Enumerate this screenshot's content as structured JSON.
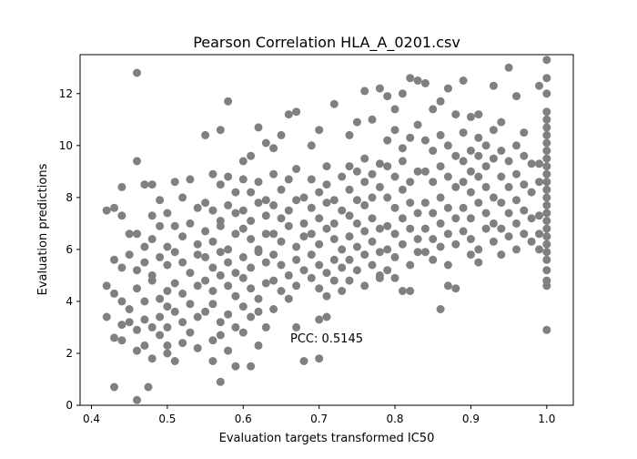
{
  "chart_data": {
    "type": "scatter",
    "title": "Pearson Correlation HLA_A_0201.csv",
    "xlabel": "Evaluation targets transformed IC50",
    "ylabel": "Evaluation predictions",
    "annotation": "PCC: 0.5145",
    "xlim": [
      0.385,
      1.035
    ],
    "ylim": [
      0,
      13.5
    ],
    "x_ticks": [
      0.4,
      0.5,
      0.6,
      0.7,
      0.8,
      0.9,
      1.0
    ],
    "x_tick_labels": [
      "0.4",
      "0.5",
      "0.6",
      "0.7",
      "0.8",
      "0.9",
      "1.0"
    ],
    "y_ticks": [
      0,
      2,
      4,
      6,
      8,
      10,
      12
    ],
    "y_tick_labels": [
      "0",
      "2",
      "4",
      "6",
      "8",
      "10",
      "12"
    ],
    "marker_color": "#808080",
    "grid": false,
    "legend": "none",
    "points": [
      [
        0.42,
        7.5
      ],
      [
        0.43,
        7.6
      ],
      [
        0.44,
        8.4
      ],
      [
        0.44,
        7.3
      ],
      [
        0.45,
        6.6
      ],
      [
        0.46,
        6.6
      ],
      [
        0.47,
        6.1
      ],
      [
        0.43,
        5.6
      ],
      [
        0.44,
        5.3
      ],
      [
        0.45,
        5.8
      ],
      [
        0.46,
        5.2
      ],
      [
        0.47,
        5.5
      ],
      [
        0.48,
        5.0
      ],
      [
        0.42,
        4.6
      ],
      [
        0.43,
        4.3
      ],
      [
        0.44,
        4.0
      ],
      [
        0.45,
        3.7
      ],
      [
        0.46,
        4.5
      ],
      [
        0.47,
        4.0
      ],
      [
        0.42,
        3.4
      ],
      [
        0.44,
        3.1
      ],
      [
        0.45,
        3.2
      ],
      [
        0.46,
        2.9
      ],
      [
        0.47,
        3.3
      ],
      [
        0.48,
        3.0
      ],
      [
        0.43,
        2.6
      ],
      [
        0.44,
        2.5
      ],
      [
        0.46,
        2.1
      ],
      [
        0.47,
        2.3
      ],
      [
        0.46,
        12.8
      ],
      [
        0.46,
        9.4
      ],
      [
        0.43,
        0.7
      ],
      [
        0.46,
        0.2
      ],
      [
        0.475,
        0.7
      ],
      [
        0.47,
        8.5
      ],
      [
        0.48,
        8.5
      ],
      [
        0.49,
        7.9
      ],
      [
        0.48,
        7.3
      ],
      [
        0.49,
        6.9
      ],
      [
        0.5,
        7.4
      ],
      [
        0.48,
        6.4
      ],
      [
        0.5,
        6.1
      ],
      [
        0.49,
        5.7
      ],
      [
        0.5,
        5.4
      ],
      [
        0.48,
        4.8
      ],
      [
        0.5,
        4.4
      ],
      [
        0.49,
        4.1
      ],
      [
        0.5,
        3.8
      ],
      [
        0.49,
        3.4
      ],
      [
        0.5,
        3.0
      ],
      [
        0.49,
        2.7
      ],
      [
        0.5,
        2.3
      ],
      [
        0.48,
        1.8
      ],
      [
        0.5,
        2.0
      ],
      [
        0.51,
        8.6
      ],
      [
        0.52,
        8.0
      ],
      [
        0.53,
        8.7
      ],
      [
        0.54,
        7.6
      ],
      [
        0.51,
        6.9
      ],
      [
        0.52,
        6.5
      ],
      [
        0.53,
        7.0
      ],
      [
        0.54,
        6.2
      ],
      [
        0.51,
        5.9
      ],
      [
        0.52,
        5.5
      ],
      [
        0.53,
        5.1
      ],
      [
        0.54,
        5.8
      ],
      [
        0.51,
        4.7
      ],
      [
        0.52,
        4.3
      ],
      [
        0.53,
        3.9
      ],
      [
        0.54,
        4.6
      ],
      [
        0.51,
        3.6
      ],
      [
        0.52,
        3.2
      ],
      [
        0.53,
        2.8
      ],
      [
        0.54,
        3.4
      ],
      [
        0.52,
        2.4
      ],
      [
        0.54,
        2.2
      ],
      [
        0.51,
        1.7
      ],
      [
        0.55,
        10.4
      ],
      [
        0.57,
        10.6
      ],
      [
        0.58,
        11.7
      ],
      [
        0.56,
        8.9
      ],
      [
        0.57,
        8.5
      ],
      [
        0.58,
        8.8
      ],
      [
        0.59,
        8.2
      ],
      [
        0.55,
        7.8
      ],
      [
        0.56,
        7.5
      ],
      [
        0.57,
        7.1
      ],
      [
        0.58,
        7.7
      ],
      [
        0.59,
        7.4
      ],
      [
        0.55,
        6.7
      ],
      [
        0.56,
        6.3
      ],
      [
        0.57,
        6.9
      ],
      [
        0.58,
        6.0
      ],
      [
        0.59,
        6.6
      ],
      [
        0.55,
        5.7
      ],
      [
        0.56,
        5.3
      ],
      [
        0.57,
        5.9
      ],
      [
        0.58,
        5.5
      ],
      [
        0.59,
        5.1
      ],
      [
        0.55,
        4.8
      ],
      [
        0.56,
        4.4
      ],
      [
        0.57,
        5.0
      ],
      [
        0.58,
        4.6
      ],
      [
        0.59,
        4.2
      ],
      [
        0.55,
        3.6
      ],
      [
        0.56,
        3.9
      ],
      [
        0.57,
        3.2
      ],
      [
        0.58,
        3.5
      ],
      [
        0.59,
        3.0
      ],
      [
        0.56,
        2.5
      ],
      [
        0.57,
        2.7
      ],
      [
        0.58,
        2.1
      ],
      [
        0.56,
        1.7
      ],
      [
        0.59,
        1.5
      ],
      [
        0.57,
        0.9
      ],
      [
        0.6,
        9.4
      ],
      [
        0.61,
        9.6
      ],
      [
        0.62,
        10.7
      ],
      [
        0.63,
        10.1
      ],
      [
        0.6,
        8.7
      ],
      [
        0.61,
        8.2
      ],
      [
        0.62,
        8.6
      ],
      [
        0.63,
        7.9
      ],
      [
        0.6,
        7.5
      ],
      [
        0.61,
        7.1
      ],
      [
        0.62,
        7.8
      ],
      [
        0.63,
        7.3
      ],
      [
        0.6,
        6.8
      ],
      [
        0.61,
        6.4
      ],
      [
        0.62,
        6.0
      ],
      [
        0.63,
        6.6
      ],
      [
        0.6,
        5.7
      ],
      [
        0.61,
        5.3
      ],
      [
        0.62,
        5.9
      ],
      [
        0.63,
        5.5
      ],
      [
        0.6,
        4.9
      ],
      [
        0.61,
        4.5
      ],
      [
        0.62,
        4.1
      ],
      [
        0.63,
        4.7
      ],
      [
        0.6,
        3.8
      ],
      [
        0.61,
        3.4
      ],
      [
        0.62,
        3.6
      ],
      [
        0.63,
        3.0
      ],
      [
        0.6,
        2.8
      ],
      [
        0.62,
        2.3
      ],
      [
        0.61,
        1.5
      ],
      [
        0.64,
        9.9
      ],
      [
        0.65,
        10.4
      ],
      [
        0.66,
        11.2
      ],
      [
        0.67,
        11.3
      ],
      [
        0.64,
        8.9
      ],
      [
        0.65,
        8.3
      ],
      [
        0.66,
        8.7
      ],
      [
        0.67,
        9.1
      ],
      [
        0.68,
        8.0
      ],
      [
        0.64,
        7.7
      ],
      [
        0.65,
        7.2
      ],
      [
        0.66,
        7.5
      ],
      [
        0.67,
        7.9
      ],
      [
        0.68,
        7.0
      ],
      [
        0.64,
        6.6
      ],
      [
        0.65,
        6.3
      ],
      [
        0.66,
        6.9
      ],
      [
        0.67,
        6.1
      ],
      [
        0.68,
        6.5
      ],
      [
        0.64,
        5.8
      ],
      [
        0.65,
        5.4
      ],
      [
        0.66,
        5.0
      ],
      [
        0.67,
        5.6
      ],
      [
        0.68,
        5.2
      ],
      [
        0.64,
        4.8
      ],
      [
        0.65,
        4.4
      ],
      [
        0.66,
        4.1
      ],
      [
        0.67,
        4.6
      ],
      [
        0.64,
        3.7
      ],
      [
        0.67,
        3.0
      ],
      [
        0.69,
        10.0
      ],
      [
        0.7,
        10.6
      ],
      [
        0.71,
        9.2
      ],
      [
        0.72,
        11.6
      ],
      [
        0.69,
        8.7
      ],
      [
        0.7,
        8.2
      ],
      [
        0.71,
        8.5
      ],
      [
        0.72,
        7.9
      ],
      [
        0.73,
        8.8
      ],
      [
        0.69,
        7.6
      ],
      [
        0.7,
        7.2
      ],
      [
        0.71,
        7.8
      ],
      [
        0.72,
        7.0
      ],
      [
        0.73,
        7.5
      ],
      [
        0.69,
        6.6
      ],
      [
        0.7,
        6.2
      ],
      [
        0.71,
        6.8
      ],
      [
        0.72,
        6.4
      ],
      [
        0.73,
        6.0
      ],
      [
        0.69,
        5.8
      ],
      [
        0.7,
        5.4
      ],
      [
        0.71,
        5.1
      ],
      [
        0.72,
        5.6
      ],
      [
        0.73,
        5.3
      ],
      [
        0.69,
        4.9
      ],
      [
        0.7,
        4.5
      ],
      [
        0.71,
        4.2
      ],
      [
        0.72,
        4.8
      ],
      [
        0.73,
        4.4
      ],
      [
        0.7,
        3.3
      ],
      [
        0.71,
        3.4
      ],
      [
        0.7,
        1.8
      ],
      [
        0.68,
        1.7
      ],
      [
        0.74,
        10.4
      ],
      [
        0.75,
        10.9
      ],
      [
        0.76,
        12.1
      ],
      [
        0.77,
        11.0
      ],
      [
        0.78,
        12.2
      ],
      [
        0.74,
        9.2
      ],
      [
        0.75,
        9.0
      ],
      [
        0.76,
        9.5
      ],
      [
        0.77,
        8.9
      ],
      [
        0.78,
        9.3
      ],
      [
        0.74,
        8.3
      ],
      [
        0.75,
        7.9
      ],
      [
        0.76,
        8.6
      ],
      [
        0.77,
        8.0
      ],
      [
        0.78,
        8.4
      ],
      [
        0.74,
        7.3
      ],
      [
        0.75,
        7.0
      ],
      [
        0.76,
        7.7
      ],
      [
        0.77,
        7.2
      ],
      [
        0.78,
        6.8
      ],
      [
        0.74,
        6.5
      ],
      [
        0.75,
        6.1
      ],
      [
        0.76,
        6.7
      ],
      [
        0.77,
        6.3
      ],
      [
        0.78,
        5.9
      ],
      [
        0.74,
        5.6
      ],
      [
        0.75,
        5.2
      ],
      [
        0.76,
        5.8
      ],
      [
        0.77,
        5.4
      ],
      [
        0.78,
        5.0
      ],
      [
        0.74,
        4.8
      ],
      [
        0.76,
        4.6
      ],
      [
        0.78,
        4.9
      ],
      [
        0.79,
        11.9
      ],
      [
        0.8,
        11.4
      ],
      [
        0.81,
        12.0
      ],
      [
        0.82,
        12.6
      ],
      [
        0.83,
        12.5
      ],
      [
        0.79,
        10.2
      ],
      [
        0.8,
        10.6
      ],
      [
        0.81,
        9.9
      ],
      [
        0.82,
        10.3
      ],
      [
        0.83,
        10.8
      ],
      [
        0.79,
        9.2
      ],
      [
        0.8,
        8.8
      ],
      [
        0.81,
        9.4
      ],
      [
        0.82,
        8.6
      ],
      [
        0.83,
        9.0
      ],
      [
        0.79,
        8.0
      ],
      [
        0.8,
        7.6
      ],
      [
        0.81,
        8.3
      ],
      [
        0.82,
        7.8
      ],
      [
        0.83,
        7.4
      ],
      [
        0.79,
        6.9
      ],
      [
        0.8,
        6.6
      ],
      [
        0.81,
        7.2
      ],
      [
        0.82,
        6.8
      ],
      [
        0.83,
        6.4
      ],
      [
        0.79,
        6.0
      ],
      [
        0.8,
        5.7
      ],
      [
        0.81,
        6.2
      ],
      [
        0.82,
        5.4
      ],
      [
        0.83,
        5.9
      ],
      [
        0.79,
        5.2
      ],
      [
        0.8,
        4.9
      ],
      [
        0.81,
        4.4
      ],
      [
        0.82,
        4.4
      ],
      [
        0.84,
        12.4
      ],
      [
        0.85,
        11.4
      ],
      [
        0.86,
        11.7
      ],
      [
        0.87,
        12.2
      ],
      [
        0.88,
        11.2
      ],
      [
        0.84,
        10.2
      ],
      [
        0.85,
        9.8
      ],
      [
        0.86,
        10.4
      ],
      [
        0.87,
        10.0
      ],
      [
        0.88,
        9.6
      ],
      [
        0.84,
        9.0
      ],
      [
        0.85,
        8.6
      ],
      [
        0.86,
        9.2
      ],
      [
        0.87,
        8.8
      ],
      [
        0.88,
        8.4
      ],
      [
        0.84,
        7.8
      ],
      [
        0.85,
        7.4
      ],
      [
        0.86,
        8.0
      ],
      [
        0.87,
        7.6
      ],
      [
        0.88,
        7.2
      ],
      [
        0.84,
        6.8
      ],
      [
        0.85,
        6.4
      ],
      [
        0.86,
        7.0
      ],
      [
        0.87,
        6.6
      ],
      [
        0.88,
        6.2
      ],
      [
        0.84,
        5.9
      ],
      [
        0.85,
        5.6
      ],
      [
        0.86,
        6.1
      ],
      [
        0.87,
        5.4
      ],
      [
        0.86,
        3.7
      ],
      [
        0.87,
        4.6
      ],
      [
        0.88,
        4.5
      ],
      [
        0.89,
        12.5
      ],
      [
        0.9,
        11.1
      ],
      [
        0.91,
        11.2
      ],
      [
        0.89,
        10.5
      ],
      [
        0.9,
        9.8
      ],
      [
        0.91,
        10.3
      ],
      [
        0.92,
        10.0
      ],
      [
        0.93,
        10.6
      ],
      [
        0.89,
        9.4
      ],
      [
        0.9,
        9.0
      ],
      [
        0.91,
        9.6
      ],
      [
        0.92,
        9.2
      ],
      [
        0.93,
        9.5
      ],
      [
        0.89,
        8.6
      ],
      [
        0.9,
        8.2
      ],
      [
        0.91,
        8.8
      ],
      [
        0.92,
        8.4
      ],
      [
        0.93,
        8.0
      ],
      [
        0.89,
        7.6
      ],
      [
        0.9,
        7.2
      ],
      [
        0.91,
        7.8
      ],
      [
        0.92,
        7.4
      ],
      [
        0.93,
        7.0
      ],
      [
        0.89,
        6.7
      ],
      [
        0.9,
        6.4
      ],
      [
        0.91,
        6.0
      ],
      [
        0.92,
        6.8
      ],
      [
        0.93,
        6.3
      ],
      [
        0.9,
        5.8
      ],
      [
        0.91,
        5.5
      ],
      [
        0.93,
        12.3
      ],
      [
        0.94,
        10.9
      ],
      [
        0.95,
        13.0
      ],
      [
        0.96,
        11.9
      ],
      [
        0.97,
        10.5
      ],
      [
        0.94,
        9.8
      ],
      [
        0.95,
        9.4
      ],
      [
        0.96,
        10.0
      ],
      [
        0.97,
        9.6
      ],
      [
        0.98,
        9.3
      ],
      [
        0.94,
        8.8
      ],
      [
        0.95,
        8.4
      ],
      [
        0.96,
        8.9
      ],
      [
        0.97,
        8.5
      ],
      [
        0.98,
        8.2
      ],
      [
        0.94,
        7.8
      ],
      [
        0.95,
        7.4
      ],
      [
        0.96,
        7.9
      ],
      [
        0.97,
        7.5
      ],
      [
        0.98,
        7.2
      ],
      [
        0.94,
        6.8
      ],
      [
        0.95,
        6.5
      ],
      [
        0.96,
        7.0
      ],
      [
        0.97,
        6.6
      ],
      [
        0.98,
        6.3
      ],
      [
        0.94,
        5.8
      ],
      [
        0.96,
        6.0
      ],
      [
        0.99,
        12.3
      ],
      [
        1.0,
        13.3
      ],
      [
        1.0,
        12.6
      ],
      [
        1.0,
        12.0
      ],
      [
        1.0,
        11.3
      ],
      [
        1.0,
        11.0
      ],
      [
        1.0,
        10.7
      ],
      [
        1.0,
        10.4
      ],
      [
        1.0,
        10.1
      ],
      [
        1.0,
        9.8
      ],
      [
        1.0,
        9.5
      ],
      [
        1.0,
        9.2
      ],
      [
        1.0,
        8.9
      ],
      [
        1.0,
        8.6
      ],
      [
        1.0,
        8.3
      ],
      [
        1.0,
        8.0
      ],
      [
        1.0,
        7.7
      ],
      [
        1.0,
        7.4
      ],
      [
        1.0,
        7.1
      ],
      [
        1.0,
        6.8
      ],
      [
        1.0,
        6.5
      ],
      [
        1.0,
        6.2
      ],
      [
        1.0,
        5.9
      ],
      [
        1.0,
        5.6
      ],
      [
        1.0,
        5.2
      ],
      [
        1.0,
        4.8
      ],
      [
        1.0,
        4.6
      ],
      [
        1.0,
        2.9
      ],
      [
        0.99,
        9.3
      ],
      [
        0.99,
        8.6
      ],
      [
        0.99,
        7.3
      ],
      [
        0.99,
        6.6
      ],
      [
        0.99,
        6.0
      ]
    ]
  }
}
